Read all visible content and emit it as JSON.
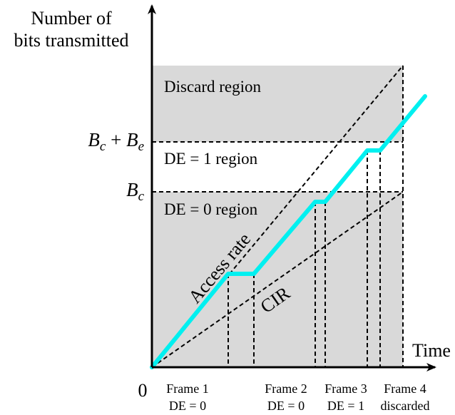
{
  "y_axis_label": [
    "Number of",
    "bits transmitted"
  ],
  "x_axis_label": "Time",
  "origin_label": "0",
  "levels": {
    "bc_plus_be": {
      "b1": "B",
      "s1": "c",
      "plus": " + ",
      "b2": "B",
      "s2": "e"
    },
    "bc": {
      "b": "B",
      "s": "c"
    }
  },
  "regions": {
    "discard": "Discard region",
    "de1": "DE = 1 region",
    "de0": "DE = 0 region"
  },
  "lines": {
    "access_rate": "Access rate",
    "cir": "CIR"
  },
  "frames": [
    {
      "name": "Frame 1",
      "status": "DE = 0"
    },
    {
      "name": "Frame 2",
      "status": "DE = 0"
    },
    {
      "name": "Frame 3",
      "status": "DE = 1"
    },
    {
      "name": "Frame 4",
      "status": "discarded"
    }
  ],
  "colors": {
    "shade": "#d9d9d9",
    "transmission": "#00f0f0",
    "axis": "#000000"
  }
}
